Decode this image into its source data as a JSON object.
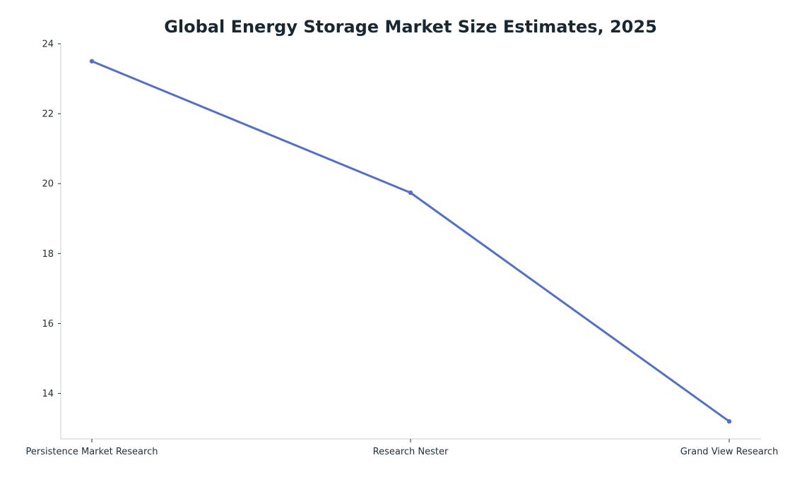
{
  "chart_data": {
    "type": "line",
    "title": "Global Energy Storage Market Size Estimates, 2025",
    "xlabel": "",
    "ylabel": "",
    "categories": [
      "Persistence Market Research",
      "Research Nester",
      "Grand View Research"
    ],
    "series": [
      {
        "values": [
          23.5,
          19.74,
          13.2
        ]
      }
    ],
    "yticks": [
      "14",
      "16",
      "18",
      "20",
      "22",
      "24"
    ],
    "ylim": [
      12.7,
      24
    ],
    "grid": false,
    "legend": "none",
    "line_color": "#5470c6",
    "axis_color": "#cccccc",
    "text_color": "#1f2d3a",
    "title_color": "#182833"
  }
}
